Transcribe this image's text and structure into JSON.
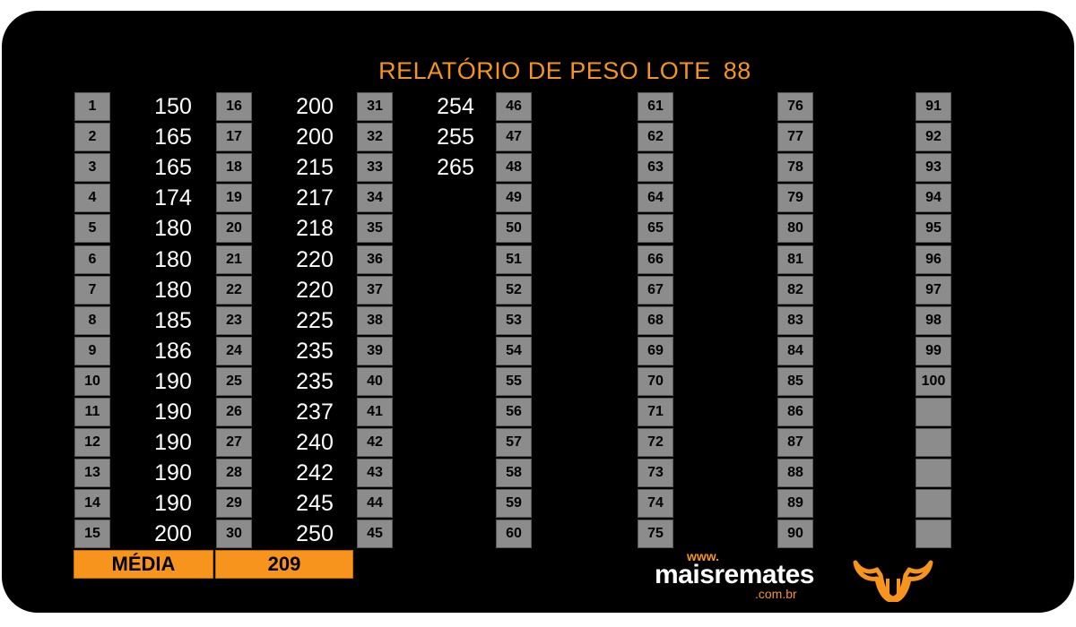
{
  "report": {
    "title": "RELATÓRIO DE PESO LOTE",
    "lot_number": "88"
  },
  "columns": [
    {
      "numbers": [
        "1",
        "2",
        "3",
        "4",
        "5",
        "6",
        "7",
        "8",
        "9",
        "10",
        "11",
        "12",
        "13",
        "14",
        "15"
      ],
      "weights": [
        "150",
        "165",
        "165",
        "174",
        "180",
        "180",
        "180",
        "185",
        "186",
        "190",
        "190",
        "190",
        "190",
        "190",
        "200"
      ]
    },
    {
      "numbers": [
        "16",
        "17",
        "18",
        "19",
        "20",
        "21",
        "22",
        "23",
        "24",
        "25",
        "26",
        "27",
        "28",
        "29",
        "30"
      ],
      "weights": [
        "200",
        "200",
        "215",
        "217",
        "218",
        "220",
        "220",
        "225",
        "235",
        "235",
        "237",
        "240",
        "242",
        "245",
        "250"
      ]
    },
    {
      "numbers": [
        "31",
        "32",
        "33",
        "34",
        "35",
        "36",
        "37",
        "38",
        "39",
        "40",
        "41",
        "42",
        "43",
        "44",
        "45"
      ],
      "weights": [
        "254",
        "255",
        "265",
        "",
        "",
        "",
        "",
        "",
        "",
        "",
        "",
        "",
        "",
        "",
        ""
      ]
    },
    {
      "numbers": [
        "46",
        "47",
        "48",
        "49",
        "50",
        "51",
        "52",
        "53",
        "54",
        "55",
        "56",
        "57",
        "58",
        "59",
        "60"
      ],
      "weights": [
        "",
        "",
        "",
        "",
        "",
        "",
        "",
        "",
        "",
        "",
        "",
        "",
        "",
        "",
        ""
      ]
    },
    {
      "numbers": [
        "61",
        "62",
        "63",
        "64",
        "65",
        "66",
        "67",
        "68",
        "69",
        "70",
        "71",
        "72",
        "73",
        "74",
        "75"
      ],
      "weights": [
        "",
        "",
        "",
        "",
        "",
        "",
        "",
        "",
        "",
        "",
        "",
        "",
        "",
        "",
        ""
      ]
    },
    {
      "numbers": [
        "76",
        "77",
        "78",
        "79",
        "80",
        "81",
        "82",
        "83",
        "84",
        "85",
        "86",
        "87",
        "88",
        "89",
        "90"
      ],
      "weights": [
        "",
        "",
        "",
        "",
        "",
        "",
        "",
        "",
        "",
        "",
        "",
        "",
        "",
        "",
        ""
      ]
    },
    {
      "numbers": [
        "91",
        "92",
        "93",
        "94",
        "95",
        "96",
        "97",
        "98",
        "99",
        "100",
        "",
        "",
        "",
        "",
        ""
      ],
      "weights": [
        "",
        "",
        "",
        "",
        "",
        "",
        "",
        "",
        "",
        "",
        "",
        "",
        "",
        "",
        ""
      ]
    }
  ],
  "summary": {
    "label": "MÉDIA",
    "value": "209"
  },
  "branding": {
    "www": "www.",
    "name": "maisremates",
    "domain": ".com.br",
    "logo_icon": "bull-head-icon"
  },
  "colors": {
    "accent": "#f7941d",
    "cell": "#8c8c8c",
    "background": "#000000"
  }
}
